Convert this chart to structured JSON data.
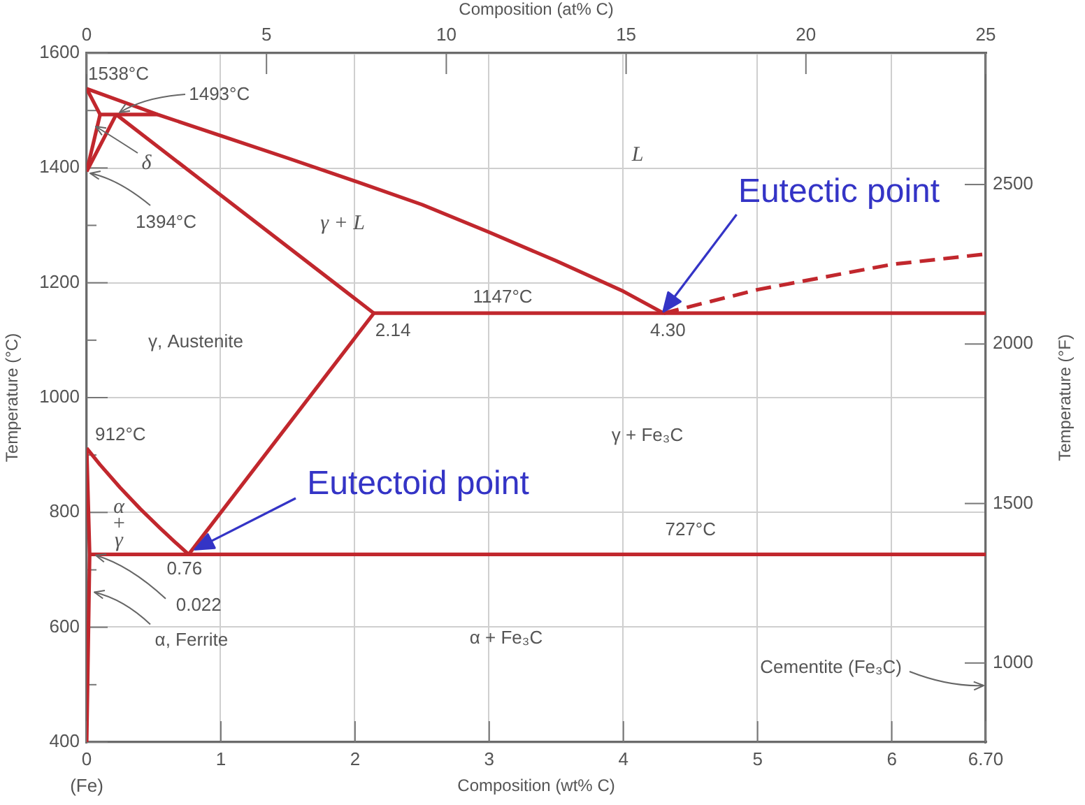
{
  "chart_data": {
    "type": "line",
    "xlabel": "Composition (wt% C)",
    "ylabel": "Temperature (°C)",
    "x2label": "Composition (at% C)",
    "y2label": "Temperature (°F)",
    "xlim": [
      0,
      6.7
    ],
    "xticks": [
      0,
      1,
      2,
      3,
      4,
      5,
      6,
      {
        "value": 6.7,
        "label": "6.70"
      }
    ],
    "ylim": [
      400,
      1600
    ],
    "yticks": [
      400,
      {
        "value": 500,
        "label": null
      },
      600,
      {
        "value": 700,
        "label": null
      },
      800,
      {
        "value": 900,
        "label": null
      },
      1000,
      {
        "value": 1100,
        "label": null
      },
      1200,
      {
        "value": 1300,
        "label": null
      },
      1400,
      {
        "value": 1500,
        "label": null
      },
      1600
    ],
    "x2lim": [
      0,
      25
    ],
    "x2ticks": [
      0,
      5,
      10,
      15,
      20,
      25
    ],
    "y2lim": [
      752,
      2912
    ],
    "y2ticks": [
      1000,
      1500,
      2000,
      2500
    ],
    "grid": true,
    "series": [
      {
        "color": "#c1272d",
        "x": [
          0,
          0.53,
          1.0,
          1.5,
          2.0,
          2.5,
          3.0,
          3.5,
          4.0,
          4.3
        ],
        "values": [
          1538,
          1493,
          1456,
          1417,
          1377,
          1336,
          1288,
          1238,
          1185,
          1147
        ]
      },
      {
        "color": "#c1272d",
        "x": [
          0,
          0.1
        ],
        "values": [
          1538,
          1493
        ]
      },
      {
        "color": "#c1272d",
        "x": [
          0.1,
          0
        ],
        "values": [
          1493,
          1394
        ]
      },
      {
        "color": "#c1272d",
        "x": [
          0.22,
          0
        ],
        "values": [
          1493,
          1394
        ]
      },
      {
        "color": "#c1272d",
        "x": [
          0.1,
          0.53
        ],
        "values": [
          1493,
          1493
        ]
      },
      {
        "color": "#c1272d",
        "x": [
          0.22,
          2.14
        ],
        "values": [
          1493,
          1147
        ]
      },
      {
        "color": "#c1272d",
        "x": [
          2.14,
          6.7
        ],
        "values": [
          1147,
          1147
        ]
      },
      {
        "color": "#c1272d",
        "x": [
          2.14,
          0.76
        ],
        "values": [
          1147,
          727
        ]
      },
      {
        "color": "#c1272d",
        "x": [
          0.022,
          6.7
        ],
        "values": [
          727,
          727
        ]
      },
      {
        "color": "#c1272d",
        "x": [
          0,
          0.1,
          0.25,
          0.4,
          0.55,
          0.66,
          0.76
        ],
        "values": [
          912,
          883,
          843,
          806,
          772,
          748,
          727
        ]
      },
      {
        "color": "#c1272d",
        "x": [
          0,
          0.022,
          0
        ],
        "values": [
          912,
          727,
          400
        ]
      },
      {
        "color": "#c1272d",
        "x": [
          4.3,
          5.0,
          5.5,
          6.0,
          6.7
        ],
        "values": [
          1147,
          1188,
          1210,
          1232,
          1250
        ],
        "line_style": "dashed"
      }
    ],
    "annotations": [
      {
        "text": "1538°C",
        "x": 0,
        "y": 1538
      },
      {
        "text": "1493°C",
        "x": 0.22,
        "y": 1493
      },
      {
        "text": "δ",
        "x": 0.06,
        "y": 1473
      },
      {
        "text": "1394°C",
        "x": 0,
        "y": 1394
      },
      "γ + L",
      "L",
      "γ, Austenite",
      {
        "text": "2.14",
        "x": 2.14,
        "y": 1147
      },
      {
        "text": "1147°C",
        "x": 3.1,
        "y": 1147
      },
      {
        "text": "4.30",
        "x": 4.3,
        "y": 1147
      },
      "Eutectic point",
      {
        "text": "912°C",
        "x": 0,
        "y": 912
      },
      "α + γ",
      {
        "text": "0.76",
        "x": 0.76,
        "y": 727
      },
      {
        "text": "0.022",
        "x": 0.022,
        "y": 727
      },
      {
        "text": "α, Ferrite",
        "x": 0.05,
        "y": 660
      },
      "γ + Fe₃C",
      "Eutectoid point",
      {
        "text": "727°C",
        "x": 4.5,
        "y": 727
      },
      "α + Fe₃C",
      "Cementite (Fe₃C)",
      "(Fe)"
    ]
  }
}
